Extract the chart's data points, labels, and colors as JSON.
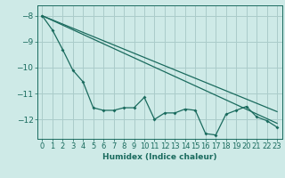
{
  "xlabel": "Humidex (Indice chaleur)",
  "ylabel": "",
  "background_color": "#ceeae7",
  "grid_color": "#aaccca",
  "line_color": "#1a6b5e",
  "xlim": [
    -0.5,
    23.5
  ],
  "ylim": [
    -12.75,
    -7.6
  ],
  "yticks": [
    -8,
    -9,
    -10,
    -11,
    -12
  ],
  "xticks": [
    0,
    1,
    2,
    3,
    4,
    5,
    6,
    7,
    8,
    9,
    10,
    11,
    12,
    13,
    14,
    15,
    16,
    17,
    18,
    19,
    20,
    21,
    22,
    23
  ],
  "line1_x": [
    0,
    23
  ],
  "line1_y": [
    -8.0,
    -11.7
  ],
  "line2_x": [
    0,
    23
  ],
  "line2_y": [
    -8.0,
    -12.15
  ],
  "jagged_x": [
    0,
    1,
    2,
    3,
    4,
    5,
    6,
    7,
    8,
    9,
    10,
    11,
    12,
    13,
    14,
    15,
    16,
    17,
    18,
    19,
    20,
    21,
    22,
    23
  ],
  "jagged_y": [
    -8.0,
    -8.55,
    -9.3,
    -10.1,
    -10.55,
    -11.55,
    -11.65,
    -11.65,
    -11.55,
    -11.55,
    -11.15,
    -12.0,
    -11.75,
    -11.75,
    -11.6,
    -11.65,
    -12.55,
    -12.6,
    -11.8,
    -11.65,
    -11.5,
    -11.9,
    -12.05,
    -12.3
  ]
}
